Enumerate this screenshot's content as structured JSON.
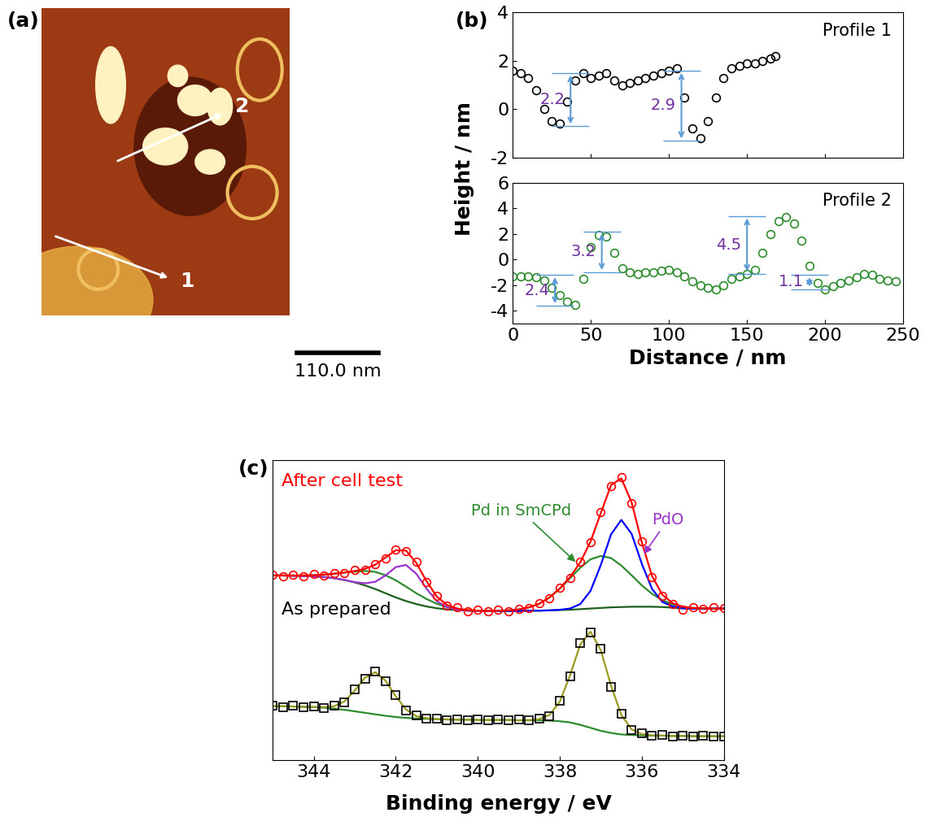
{
  "panel_labels": [
    "(a)",
    "(b)",
    "(c)"
  ],
  "image": {
    "profile_labels": [
      "1",
      "2"
    ],
    "scale_bar": "110.0 nm"
  },
  "chart_data": [
    {
      "type": "scatter",
      "title": "Profile 1",
      "y_label": "Height / nm",
      "x": [
        0,
        5,
        10,
        15,
        20,
        25,
        30,
        35,
        40,
        45,
        50,
        55,
        60,
        65,
        70,
        75,
        80,
        85,
        90,
        95,
        100,
        105,
        110,
        115,
        120,
        125,
        130,
        135,
        140,
        145,
        150,
        155,
        160,
        165,
        168
      ],
      "series": [
        {
          "color": "#000000",
          "marker": "circle",
          "values": [
            1.6,
            1.5,
            1.3,
            0.8,
            0.0,
            -0.5,
            -0.6,
            0.3,
            1.2,
            1.5,
            1.3,
            1.4,
            1.5,
            1.2,
            1.0,
            1.1,
            1.2,
            1.3,
            1.4,
            1.5,
            1.6,
            1.7,
            0.5,
            -0.8,
            -1.2,
            -0.5,
            0.5,
            1.3,
            1.7,
            1.8,
            1.9,
            1.9,
            2.0,
            2.1,
            2.2
          ]
        }
      ],
      "xlim": [
        0,
        250
      ],
      "xticks": [
        0,
        50,
        100,
        150,
        200,
        250
      ],
      "ylim": [
        -2,
        4
      ],
      "yticks": [
        -2,
        0,
        2,
        4
      ],
      "tick_labels": "y",
      "annotations": [
        {
          "text": "2.2",
          "x": 37,
          "from": -0.7,
          "to": 1.5
        },
        {
          "text": "2.9",
          "x": 108,
          "from": -1.3,
          "to": 1.6
        }
      ]
    },
    {
      "type": "scatter",
      "title": "Profile 2",
      "x_label": "Distance / nm",
      "x": [
        0,
        5,
        10,
        15,
        20,
        25,
        30,
        35,
        40,
        45,
        50,
        55,
        60,
        65,
        70,
        75,
        80,
        85,
        90,
        95,
        100,
        105,
        110,
        115,
        120,
        125,
        130,
        135,
        140,
        145,
        150,
        155,
        160,
        165,
        170,
        175,
        180,
        185,
        190,
        195,
        200,
        205,
        210,
        215,
        220,
        225,
        230,
        235,
        240,
        245
      ],
      "series": [
        {
          "color": "#2e8b2e",
          "marker": "circle",
          "values": [
            -1.3,
            -1.3,
            -1.3,
            -1.4,
            -1.6,
            -2.2,
            -2.8,
            -3.3,
            -3.5,
            -1.5,
            1.0,
            1.9,
            1.8,
            0.5,
            -0.7,
            -1.0,
            -1.1,
            -1.0,
            -1.0,
            -0.9,
            -0.8,
            -1.0,
            -1.3,
            -1.7,
            -2.0,
            -2.2,
            -2.3,
            -2.0,
            -1.5,
            -1.3,
            -1.1,
            -0.8,
            0.5,
            2.0,
            3.0,
            3.3,
            2.8,
            1.5,
            -0.5,
            -1.8,
            -2.3,
            -2.1,
            -1.8,
            -1.6,
            -1.4,
            -1.1,
            -1.2,
            -1.5,
            -1.6,
            -1.7
          ]
        }
      ],
      "xlim": [
        0,
        250
      ],
      "xticks": [
        0,
        50,
        100,
        150,
        200,
        250
      ],
      "ylim": [
        -5,
        6
      ],
      "yticks": [
        -4,
        -2,
        0,
        2,
        4,
        6
      ],
      "annotations": [
        {
          "text": "2.4",
          "x": 27,
          "from": -3.6,
          "to": -1.2
        },
        {
          "text": "3.2",
          "x": 57,
          "from": -1.0,
          "to": 2.2
        },
        {
          "text": "4.5",
          "x": 150,
          "from": -1.1,
          "to": 3.4
        },
        {
          "text": "1.1",
          "x": 190,
          "from": -2.3,
          "to": -1.2
        }
      ]
    },
    {
      "type": "line",
      "x_label": "Binding energy / eV",
      "x": [
        345,
        344.75,
        344.5,
        344.25,
        344,
        343.75,
        343.5,
        343.25,
        343,
        342.75,
        342.5,
        342.25,
        342,
        341.75,
        341.5,
        341.25,
        341,
        340.75,
        340.5,
        340.25,
        340,
        339.75,
        339.5,
        339.25,
        339,
        338.75,
        338.5,
        338.25,
        338,
        337.75,
        337.5,
        337.25,
        337,
        336.75,
        336.5,
        336.25,
        336,
        335.75,
        335.5,
        335.25,
        335,
        334.75,
        334.5,
        334.25,
        334
      ],
      "xlim": [
        345,
        334
      ],
      "xticks": [
        344,
        342,
        340,
        338,
        336,
        334
      ],
      "ylim": [
        0,
        10
      ],
      "tick_labels": "x",
      "series": [
        {
          "type": "line",
          "color": "#2e8b2e",
          "values": [
            1.8,
            1.8,
            1.79,
            1.78,
            1.77,
            1.75,
            1.72,
            1.68,
            1.63,
            1.58,
            1.53,
            1.48,
            1.44,
            1.41,
            1.39,
            1.38,
            1.37,
            1.36,
            1.35,
            1.35,
            1.34,
            1.34,
            1.34,
            1.34,
            1.33,
            1.33,
            1.33,
            1.32,
            1.3,
            1.26,
            1.18,
            1.08,
            0.98,
            0.91,
            0.86,
            0.84,
            0.83,
            0.82,
            0.82,
            0.81,
            0.81,
            0.8,
            0.8,
            0.8,
            0.8
          ]
        },
        {
          "type": "line",
          "color": "#9a9a1e",
          "values": [
            1.8,
            1.8,
            1.79,
            1.78,
            1.77,
            1.77,
            1.8,
            1.96,
            2.32,
            2.75,
            2.93,
            2.65,
            2.13,
            1.69,
            1.47,
            1.4,
            1.37,
            1.36,
            1.35,
            1.35,
            1.34,
            1.34,
            1.34,
            1.34,
            1.33,
            1.34,
            1.37,
            1.51,
            1.95,
            2.83,
            3.86,
            4.28,
            3.66,
            2.48,
            1.51,
            1.03,
            0.87,
            0.83,
            0.82,
            0.81,
            0.81,
            0.8,
            0.8,
            0.8,
            0.8
          ]
        },
        {
          "type": "scatter",
          "color": "#000000",
          "marker": "square",
          "values": [
            1.82,
            1.77,
            1.81,
            1.76,
            1.79,
            1.75,
            1.83,
            1.93,
            2.35,
            2.72,
            2.96,
            2.62,
            2.16,
            1.67,
            1.49,
            1.38,
            1.39,
            1.34,
            1.37,
            1.33,
            1.36,
            1.32,
            1.35,
            1.33,
            1.35,
            1.32,
            1.39,
            1.48,
            1.98,
            2.8,
            3.89,
            4.25,
            3.7,
            2.45,
            1.54,
            1.01,
            0.89,
            0.81,
            0.84,
            0.79,
            0.82,
            0.78,
            0.81,
            0.79,
            0.8
          ]
        },
        {
          "type": "line",
          "color": "#1f5f1f",
          "values": [
            6.15,
            6.15,
            6.14,
            6.13,
            6.12,
            6.1,
            6.06,
            6.0,
            5.92,
            5.82,
            5.7,
            5.56,
            5.42,
            5.3,
            5.2,
            5.12,
            5.06,
            5.02,
            5.0,
            4.98,
            4.97,
            4.97,
            4.97,
            4.97,
            4.97,
            4.98,
            4.98,
            4.99,
            5.0,
            5.01,
            5.03,
            5.05,
            5.07,
            5.09,
            5.1,
            5.11,
            5.11,
            5.11,
            5.1,
            5.08,
            5.05,
            5.05,
            5.05,
            5.05,
            5.05
          ]
        },
        {
          "type": "line",
          "color": "#2e8b2e",
          "values": [
            6.15,
            6.15,
            6.15,
            6.15,
            6.16,
            6.18,
            6.21,
            6.25,
            6.28,
            6.3,
            6.27,
            6.16,
            5.99,
            5.78,
            5.56,
            5.37,
            5.21,
            5.1,
            5.04,
            5.0,
            4.98,
            4.97,
            4.98,
            4.99,
            5.02,
            5.09,
            5.21,
            5.42,
            5.71,
            6.06,
            6.41,
            6.69,
            6.8,
            6.73,
            6.48,
            6.16,
            5.82,
            5.54,
            5.33,
            5.19,
            5.1,
            5.07,
            5.06,
            5.05,
            5.05
          ]
        },
        {
          "type": "line",
          "color": "#9933cc",
          "values": [
            6.15,
            6.15,
            6.14,
            6.13,
            6.12,
            6.1,
            6.06,
            6.0,
            5.93,
            5.89,
            5.94,
            6.15,
            6.43,
            6.5,
            6.21,
            5.71,
            5.3,
            5.09,
            5.01,
            4.98,
            4.97,
            4.97,
            4.97,
            null,
            null,
            null,
            null,
            null,
            null,
            null,
            null,
            null,
            null,
            null,
            null,
            null,
            null,
            null,
            null,
            null,
            null,
            null,
            null,
            null,
            null
          ]
        },
        {
          "type": "line",
          "color": "#0000ff",
          "values": [
            null,
            null,
            null,
            null,
            null,
            null,
            null,
            null,
            null,
            null,
            null,
            null,
            null,
            null,
            null,
            null,
            null,
            null,
            null,
            null,
            null,
            null,
            4.97,
            4.97,
            4.97,
            4.98,
            4.98,
            4.99,
            5.01,
            5.05,
            5.2,
            5.64,
            6.5,
            7.52,
            8.0,
            7.54,
            6.54,
            5.7,
            5.27,
            5.12,
            5.06,
            5.05,
            5.05,
            5.05,
            5.05
          ]
        },
        {
          "type": "line",
          "color": "#ff0000",
          "values": [
            6.15,
            6.15,
            6.15,
            6.15,
            6.16,
            6.18,
            6.21,
            6.25,
            6.3,
            6.37,
            6.51,
            6.75,
            6.99,
            6.98,
            6.57,
            5.96,
            5.45,
            5.17,
            5.05,
            5.0,
            4.98,
            4.97,
            4.98,
            4.99,
            5.02,
            5.09,
            5.21,
            5.42,
            5.72,
            6.1,
            6.59,
            7.28,
            8.23,
            9.16,
            9.38,
            8.59,
            7.25,
            6.13,
            5.51,
            5.23,
            5.11,
            5.07,
            5.06,
            5.05,
            5.05
          ]
        },
        {
          "type": "scatter",
          "color": "#ff0000",
          "marker": "circle",
          "values": [
            6.18,
            6.12,
            6.17,
            6.13,
            6.19,
            6.15,
            6.24,
            6.22,
            6.33,
            6.35,
            6.54,
            6.72,
            7.02,
            6.95,
            6.6,
            5.93,
            5.48,
            5.14,
            5.08,
            4.97,
            5.01,
            4.95,
            5.0,
            4.97,
            5.05,
            5.06,
            5.24,
            5.39,
            5.75,
            6.07,
            6.62,
            7.25,
            8.26,
            9.13,
            9.42,
            8.56,
            7.28,
            6.1,
            5.48,
            5.2,
            5.02,
            5.1,
            5.04,
            5.09,
            5.06
          ]
        }
      ],
      "annotations": [
        {
          "text": "After cell test",
          "color": "#ff0000"
        },
        {
          "text": "As prepared",
          "color": "#000000"
        },
        {
          "text": "Pd in SmCPd",
          "color": "#2e8b2e"
        },
        {
          "text": "PdO",
          "color": "#9933cc"
        }
      ]
    }
  ]
}
